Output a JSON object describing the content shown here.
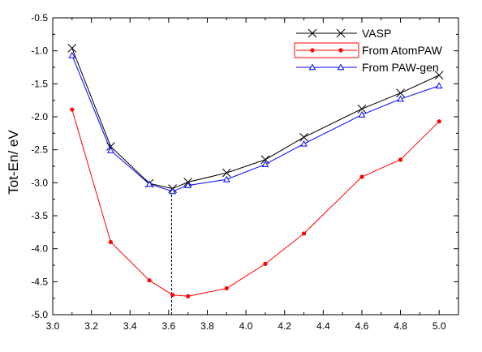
{
  "chart_data": {
    "type": "line",
    "title": "",
    "xlabel": "",
    "ylabel": "Tot-En/ eV",
    "xlim": [
      3.0,
      5.1
    ],
    "ylim": [
      -5.0,
      -0.5
    ],
    "xticks": [
      3.0,
      3.2,
      3.4,
      3.6,
      3.8,
      4.0,
      4.2,
      4.4,
      4.6,
      4.8,
      5.0
    ],
    "xtick_labels": [
      "3.0",
      "3.2",
      "3.4",
      "3.6",
      "3.8",
      "4.0",
      "4.2",
      "4.4",
      "4.6",
      "4.8",
      "5.0"
    ],
    "yticks": [
      -0.5,
      -1.0,
      -1.5,
      -2.0,
      -2.5,
      -3.0,
      -3.5,
      -4.0,
      -4.5,
      -5.0
    ],
    "ytick_labels": [
      "-0.5",
      "-1.0",
      "-1.5",
      "-2.0",
      "-2.5",
      "-3.0",
      "-3.5",
      "-4.0",
      "-4.5",
      "-5.0"
    ],
    "grid": false,
    "legend_position": "top-right",
    "series": [
      {
        "name": "VASP",
        "color": "#000000",
        "marker": "x",
        "x": [
          3.1,
          3.3,
          3.5,
          3.62,
          3.7,
          3.9,
          4.1,
          4.3,
          4.6,
          4.8,
          5.0
        ],
        "y": [
          -0.96,
          -2.45,
          -3.01,
          -3.09,
          -2.99,
          -2.85,
          -2.65,
          -2.31,
          -1.88,
          -1.64,
          -1.37
        ]
      },
      {
        "name": "From AtomPAW",
        "color": "#ff0000",
        "marker": "dot",
        "x": [
          3.1,
          3.3,
          3.5,
          3.62,
          3.7,
          3.9,
          4.1,
          4.3,
          4.6,
          4.8,
          5.0
        ],
        "y": [
          -1.89,
          -3.9,
          -4.48,
          -4.7,
          -4.72,
          -4.6,
          -4.23,
          -3.77,
          -2.91,
          -2.65,
          -2.07
        ]
      },
      {
        "name": "From PAW-gen",
        "color": "#0000ff",
        "marker": "triangle",
        "x": [
          3.1,
          3.3,
          3.5,
          3.62,
          3.7,
          3.9,
          4.1,
          4.3,
          4.6,
          4.8,
          5.0
        ],
        "y": [
          -1.07,
          -2.51,
          -3.02,
          -3.13,
          -3.04,
          -2.95,
          -2.72,
          -2.41,
          -1.97,
          -1.73,
          -1.53
        ]
      }
    ],
    "annotations": [
      {
        "type": "vertical-dashed-line",
        "x": 3.615,
        "y_from": -5.0,
        "y_to": -3.13
      }
    ]
  }
}
